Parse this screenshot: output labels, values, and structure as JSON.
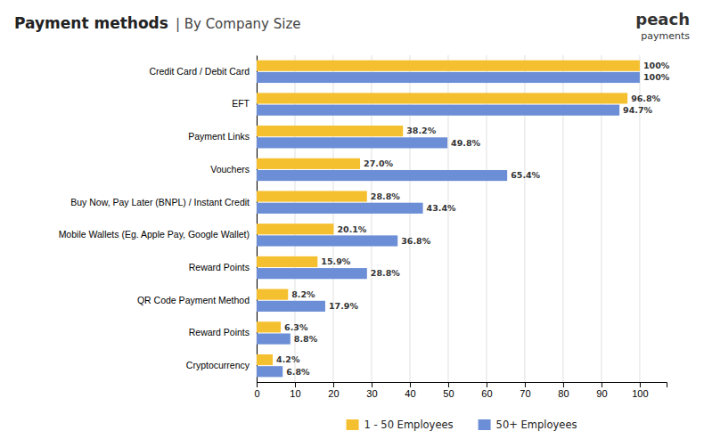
{
  "chart_data": {
    "type": "bar",
    "orientation": "horizontal",
    "title": "Payment methods",
    "subtitle": "| By Company Size",
    "annotations": [
      "peach",
      "payments"
    ],
    "categories": [
      "Credit Card / Debit Card",
      "EFT",
      "Payment Links",
      "Vouchers",
      "Buy Now, Pay Later (BNPL) / Instant Credit",
      "Mobile Wallets (Eg. Apple Pay, Google Wallet)",
      "Reward Points",
      "QR Code Payment Method",
      "Reward Points",
      "Cryptocurrency"
    ],
    "series": [
      {
        "name": "1 - 50 Employees",
        "color": "#F5C030",
        "values": [
          100.0,
          96.8,
          38.2,
          27.0,
          28.8,
          20.1,
          15.9,
          8.2,
          6.3,
          4.2
        ],
        "value_labels": [
          "100%",
          "96.8%",
          "38.2%",
          "27.0%",
          "28.8%",
          "20.1%",
          "15.9%",
          "8.2%",
          "6.3%",
          "4.2%"
        ]
      },
      {
        "name": "50+ Employees",
        "color": "#6B8ED6",
        "values": [
          100.0,
          94.7,
          49.8,
          65.4,
          43.4,
          36.8,
          28.8,
          17.9,
          8.8,
          6.8
        ],
        "value_labels": [
          "100%",
          "94.7%",
          "49.8%",
          "65.4%",
          "43.4%",
          "36.8%",
          "28.8%",
          "17.9%",
          "8.8%",
          "6.8%"
        ]
      }
    ],
    "xlim": [
      0,
      107
    ],
    "xticks": [
      0,
      10,
      20,
      30,
      40,
      50,
      60,
      70,
      80,
      90,
      100
    ],
    "grid": true,
    "data_labels": true,
    "legend": "bottom"
  }
}
